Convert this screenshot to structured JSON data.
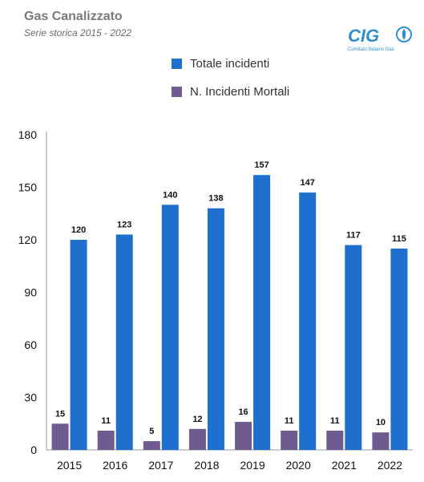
{
  "header": {
    "title": "Gas Canalizzato",
    "subtitle": "Serie storica 2015 - 2022"
  },
  "logo": {
    "text": "CIG",
    "tagline": "Comitato Italiano Gas"
  },
  "chart_data": {
    "type": "bar",
    "categories": [
      "2015",
      "2016",
      "2017",
      "2018",
      "2019",
      "2020",
      "2021",
      "2022"
    ],
    "series": [
      {
        "name": "Totale incidenti",
        "values": [
          120,
          123,
          140,
          138,
          157,
          147,
          117,
          115
        ],
        "color": "#1f6fcf"
      },
      {
        "name": "N. Incidenti Mortali",
        "values": [
          15,
          11,
          5,
          12,
          16,
          11,
          11,
          10
        ],
        "color": "#6e5b8f"
      }
    ],
    "yticks": [
      "0",
      "30",
      "60",
      "90",
      "120",
      "150",
      "180"
    ],
    "ylim": [
      0,
      180
    ],
    "grid": false,
    "legend_position": "top-center"
  }
}
